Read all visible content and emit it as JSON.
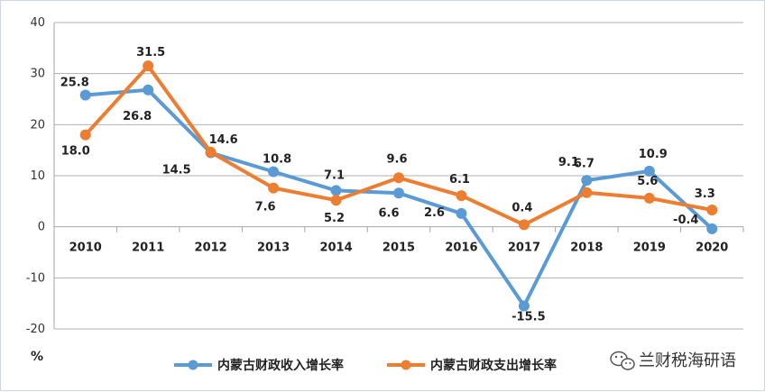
{
  "chart_data": {
    "type": "line",
    "categories": [
      "2010",
      "2011",
      "2012",
      "2013",
      "2014",
      "2015",
      "2016",
      "2017",
      "2018",
      "2019",
      "2020"
    ],
    "series": [
      {
        "name": "内蒙古财政收入增长率",
        "values": [
          25.8,
          26.8,
          14.5,
          10.8,
          7.1,
          6.6,
          2.6,
          -15.5,
          9.1,
          10.9,
          -0.4
        ],
        "color": "#5b9bd5",
        "labels": [
          "25.8",
          "26.8",
          "14.5",
          "10.8",
          "7.1",
          "6.6",
          "2.6",
          "-15.5",
          "9.1",
          "10.9",
          "-0.4"
        ]
      },
      {
        "name": "内蒙古财政支出增长率",
        "values": [
          18.0,
          31.5,
          14.6,
          7.6,
          5.2,
          9.6,
          6.1,
          0.4,
          6.7,
          5.6,
          3.3
        ],
        "color": "#ed7d31",
        "labels": [
          "18.0",
          "31.5",
          "14.6",
          "7.6",
          "5.2",
          "9.6",
          "6.1",
          "0.4",
          "6.7",
          "5.6",
          "3.3"
        ]
      }
    ],
    "yticks": [
      "40",
      "30",
      "20",
      "10",
      "0",
      "-10",
      "-20"
    ],
    "ylim": [
      -20,
      40
    ],
    "ylabel": "%",
    "grid": true,
    "legend_position": "bottom"
  },
  "watermark": {
    "text": "兰财税海研语",
    "icon": "wechat-icon"
  }
}
